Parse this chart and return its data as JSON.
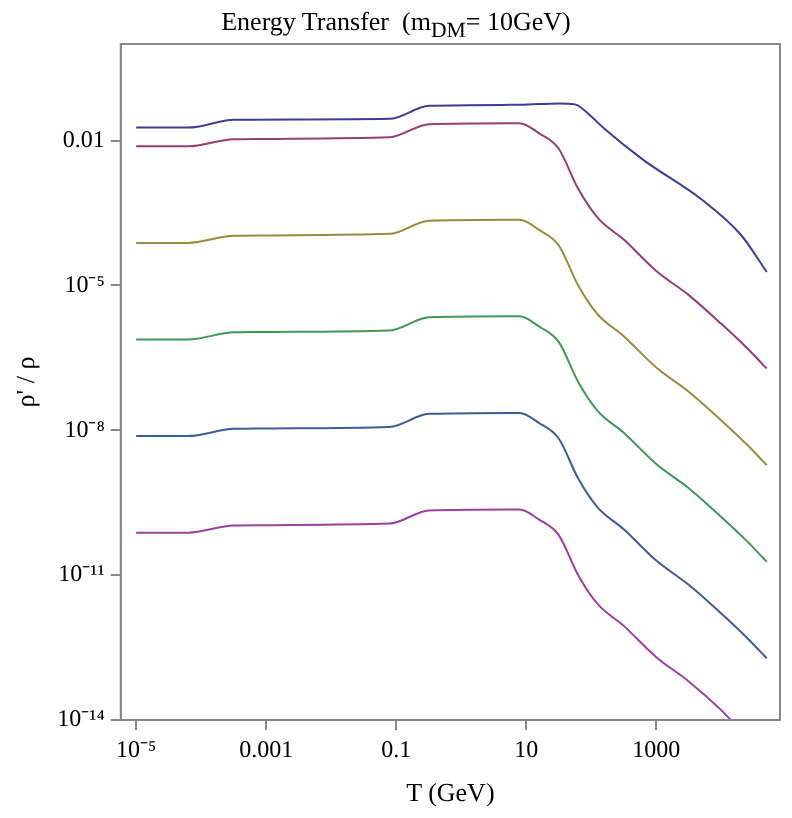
{
  "chart_data": {
    "type": "line",
    "title": "Energy Transfer  (m$_{DM}$= 10GeV)",
    "xlabel": "T (GeV)",
    "ylabel": "ρ' / ρ",
    "log": "xy",
    "grid": false,
    "legend": false,
    "marker": "none",
    "line_style": "solid",
    "xlim": [
      5.8e-06,
      80000
    ],
    "ylim": [
      1e-14,
      1
    ],
    "xticks": [
      {
        "value": 1e-05,
        "label": "10⁻⁵"
      },
      0.001,
      0.1,
      10,
      1000
    ],
    "yticks": [
      {
        "value": 1e-14,
        "label": "10⁻¹⁴"
      },
      {
        "value": 1e-11,
        "label": "10⁻¹¹"
      },
      {
        "value": 1e-08,
        "label": "10⁻⁸"
      },
      {
        "value": 1e-05,
        "label": "10⁻⁵"
      },
      0.01
    ],
    "series": [
      {
        "color": "#3d3d99",
        "x": [
          1e-05,
          6.3e-05,
          0.00032,
          0.079,
          0.32,
          7.9,
          31.6,
          56,
          100,
          158,
          631,
          5000,
          20000,
          50000
        ],
        "values": [
          0.0186,
          0.0186,
          0.0269,
          0.0282,
          0.0525,
          0.055,
          0.0589,
          0.0562,
          0.0316,
          0.0178,
          0.00398,
          0.0006,
          0.000112,
          1.9e-05
        ]
      },
      {
        "color": "#993d71",
        "x": [
          1e-05,
          6.3e-05,
          0.00032,
          0.079,
          0.32,
          7.9,
          15.8,
          31.6,
          63,
          126,
          316,
          1000,
          3160,
          10000,
          25000,
          50000
        ],
        "values": [
          0.00759,
          0.00759,
          0.0107,
          0.0117,
          0.0219,
          0.0229,
          0.0141,
          0.00676,
          0.001,
          0.00025,
          8.9e-05,
          2e-05,
          6.3e-06,
          1.6e-06,
          5e-07,
          1.9e-07
        ]
      },
      {
        "color": "#998c3d",
        "x": [
          1e-05,
          6.3e-05,
          0.00032,
          0.079,
          0.32,
          7.9,
          15.8,
          31.6,
          63,
          126,
          316,
          1000,
          3160,
          10000,
          25000,
          50000
        ],
        "values": [
          7.59e-05,
          7.59e-05,
          0.000107,
          0.000117,
          0.000219,
          0.000229,
          0.000141,
          6.76e-05,
          1e-05,
          2.5e-06,
          8.9e-07,
          2e-07,
          6.3e-08,
          1.6e-08,
          5e-09,
          1.9e-09
        ]
      },
      {
        "color": "#3d9954",
        "x": [
          1e-05,
          6.3e-05,
          0.00032,
          0.079,
          0.32,
          7.9,
          15.8,
          31.6,
          63,
          126,
          316,
          1000,
          3160,
          10000,
          25000,
          50000
        ],
        "values": [
          7.59e-07,
          7.59e-07,
          1.07e-06,
          1.17e-06,
          2.19e-06,
          2.29e-06,
          1.41e-06,
          6.76e-07,
          1e-07,
          2.5e-08,
          8.9e-09,
          2e-09,
          6.3e-10,
          1.6e-10,
          5e-11,
          1.9e-11
        ]
      },
      {
        "color": "#3d5b99",
        "x": [
          1e-05,
          6.3e-05,
          0.00032,
          0.079,
          0.32,
          7.9,
          15.8,
          31.6,
          63,
          126,
          316,
          1000,
          3160,
          10000,
          25000,
          50000
        ],
        "values": [
          7.59e-09,
          7.59e-09,
          1.07e-08,
          1.17e-08,
          2.19e-08,
          2.29e-08,
          1.41e-08,
          6.76e-09,
          1e-09,
          2.5e-10,
          8.9e-11,
          2e-11,
          6.3e-12,
          1.6e-12,
          5e-13,
          1.9e-13
        ]
      },
      {
        "color": "#a03da0",
        "x": [
          1e-05,
          6.3e-05,
          0.00032,
          0.079,
          0.32,
          7.9,
          15.8,
          31.6,
          63,
          126,
          316,
          1000,
          3160,
          10000,
          14000
        ],
        "values": [
          7.59e-11,
          7.59e-11,
          1.07e-10,
          1.17e-10,
          2.19e-10,
          2.29e-10,
          1.41e-10,
          6.76e-11,
          1e-11,
          2.5e-12,
          8.9e-13,
          2e-13,
          6.3e-14,
          1.6e-14,
          1e-14
        ]
      }
    ]
  }
}
